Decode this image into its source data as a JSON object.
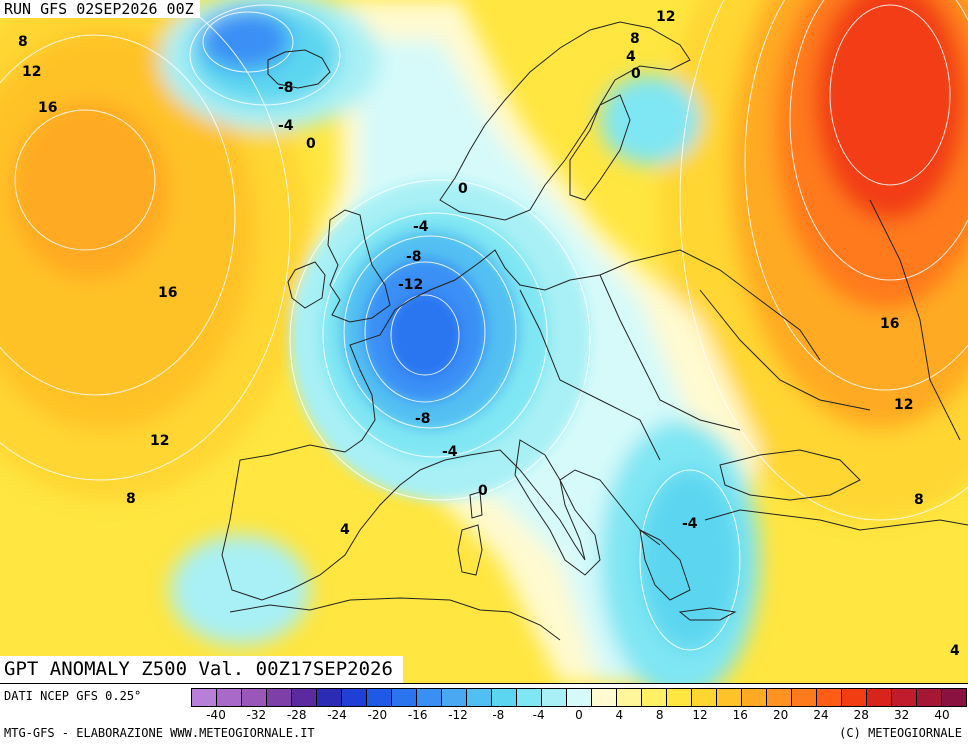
{
  "header": {
    "run": "RUN GFS 02SEP2026 00Z"
  },
  "title": "GPT ANOMALY Z500 Val. 00Z17SEP2026",
  "footer": {
    "source": "DATI NCEP GFS 0.25°",
    "credit_left": "MTG-GFS - ELABORAZIONE WWW.METEOGIORNALE.IT",
    "credit_right": "(C) METEOGIORNALE"
  },
  "legend": {
    "colors": [
      "#b77fd8",
      "#a869c9",
      "#9a56b9",
      "#7f3fa8",
      "#5a2a9e",
      "#2b2bb5",
      "#1f3fd6",
      "#1e5ae6",
      "#2a74f0",
      "#3a8ff5",
      "#4aa8f2",
      "#52bff2",
      "#5cd6f0",
      "#7fe6f3",
      "#a8f0f5",
      "#d6fafa",
      "#fffad0",
      "#fff59a",
      "#fff066",
      "#ffe640",
      "#ffd630",
      "#ffc228",
      "#ffaa22",
      "#ff9220",
      "#ff7a1c",
      "#ff5c16",
      "#f23c12",
      "#d8241a",
      "#c01c2c",
      "#a41836",
      "#8a1240"
    ],
    "ticks": [
      "-40",
      "-32",
      "-28",
      "-24",
      "-20",
      "-16",
      "-12",
      "-8",
      "-4",
      "0",
      "4",
      "8",
      "12",
      "16",
      "20",
      "24",
      "28",
      "32",
      "40"
    ]
  },
  "labels": [
    {
      "text": "8"
    },
    {
      "text": "12"
    },
    {
      "text": "16"
    },
    {
      "text": "-8"
    },
    {
      "text": "-4"
    },
    {
      "text": "0"
    },
    {
      "text": "12"
    },
    {
      "text": "8"
    },
    {
      "text": "4"
    },
    {
      "text": "0"
    },
    {
      "text": "0"
    },
    {
      "text": "-4"
    },
    {
      "text": "-8"
    },
    {
      "text": "-12"
    },
    {
      "text": "16"
    },
    {
      "text": "16"
    },
    {
      "text": "12"
    },
    {
      "text": "12"
    },
    {
      "text": "-8"
    },
    {
      "text": "-4"
    },
    {
      "text": "0"
    },
    {
      "text": "8"
    },
    {
      "text": "4"
    },
    {
      "text": "-4"
    },
    {
      "text": "8"
    },
    {
      "text": "4"
    }
  ]
}
